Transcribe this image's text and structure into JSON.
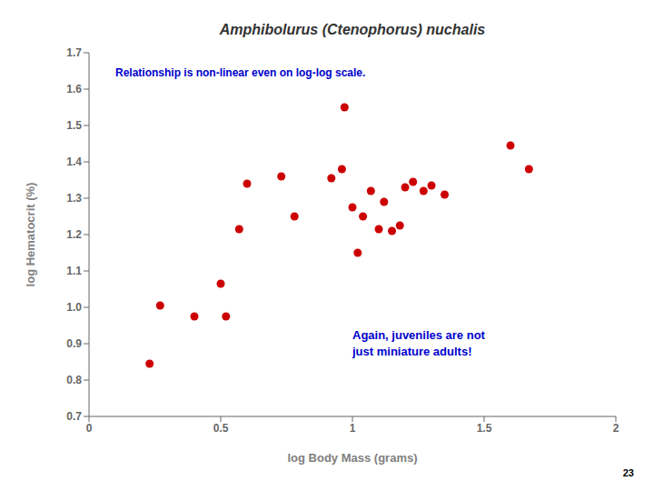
{
  "chart_data": {
    "type": "scatter",
    "title": "Amphibolurus (Ctenophorus) nuchalis",
    "xlabel": "log Body Mass (grams)",
    "ylabel": "log Hematocrit (%)",
    "x": [
      0.23,
      0.27,
      0.4,
      0.5,
      0.52,
      0.57,
      0.6,
      0.73,
      0.78,
      0.92,
      0.96,
      0.97,
      1.0,
      1.02,
      1.04,
      1.07,
      1.1,
      1.12,
      1.15,
      1.18,
      1.2,
      1.23,
      1.27,
      1.3,
      1.35,
      1.6,
      1.67
    ],
    "values": [
      0.845,
      1.005,
      0.975,
      1.065,
      0.975,
      1.215,
      1.34,
      1.36,
      1.25,
      1.355,
      1.38,
      1.55,
      1.275,
      1.15,
      1.25,
      1.32,
      1.215,
      1.29,
      1.21,
      1.225,
      1.33,
      1.345,
      1.32,
      1.335,
      1.31,
      1.445,
      1.38
    ],
    "color": "#cc0000",
    "xlim": [
      0,
      2
    ],
    "ylim": [
      0.7,
      1.7
    ],
    "xticks": [
      0,
      0.5,
      1,
      1.5,
      2
    ],
    "yticks": [
      0.7,
      0.8,
      0.9,
      {
        "value": 1,
        "label": "1.0"
      },
      1.1,
      1.2,
      1.3,
      1.4,
      1.5,
      1.6,
      1.7
    ],
    "grid": false,
    "annotations": [
      {
        "text": "Relationship is non-linear even on log-log scale.",
        "color": "#0000cc"
      },
      {
        "text": "Again, juveniles are not\njust miniature adults!",
        "color": "#0000cc"
      },
      {
        "text": "23"
      }
    ]
  }
}
